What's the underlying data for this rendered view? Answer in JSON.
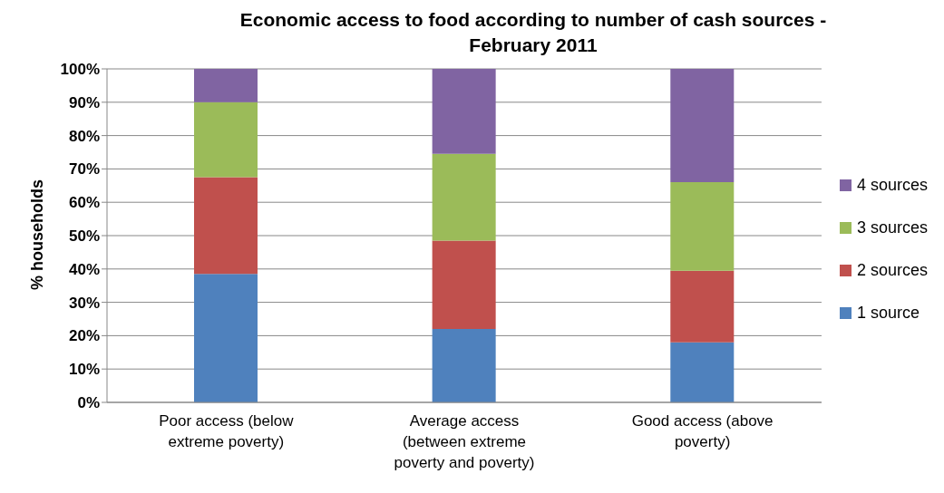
{
  "chart_data": {
    "type": "bar",
    "title": "Economic access to food according to number of cash sources - February 2011",
    "ylabel": "% households",
    "categories": [
      "Poor access (below extreme poverty)",
      "Average access (between extreme poverty and poverty)",
      "Good access (above poverty)"
    ],
    "stacked": true,
    "series": [
      {
        "name": "1 source",
        "color": "#4f81bd",
        "values": [
          38.5,
          22,
          18
        ]
      },
      {
        "name": "2 sources",
        "color": "#c0504d",
        "values": [
          29,
          26.5,
          21.5
        ]
      },
      {
        "name": "3 sources",
        "color": "#9bbb59",
        "values": [
          22.5,
          26,
          26.5
        ]
      },
      {
        "name": "4 sources",
        "color": "#8064a2",
        "values": [
          10,
          25.5,
          34
        ]
      }
    ],
    "ylim": [
      0,
      100
    ],
    "yticks": [
      {
        "value": 0,
        "label": "0%"
      },
      {
        "value": 10,
        "label": "10%"
      },
      {
        "value": 20,
        "label": "20%"
      },
      {
        "value": 30,
        "label": "30%"
      },
      {
        "value": 40,
        "label": "40%"
      },
      {
        "value": 50,
        "label": "50%"
      },
      {
        "value": 60,
        "label": "60%"
      },
      {
        "value": 70,
        "label": "70%"
      },
      {
        "value": 80,
        "label": "80%"
      },
      {
        "value": 90,
        "label": "90%"
      },
      {
        "value": 100,
        "label": "100%"
      }
    ],
    "grid": "y",
    "legend": "right"
  }
}
